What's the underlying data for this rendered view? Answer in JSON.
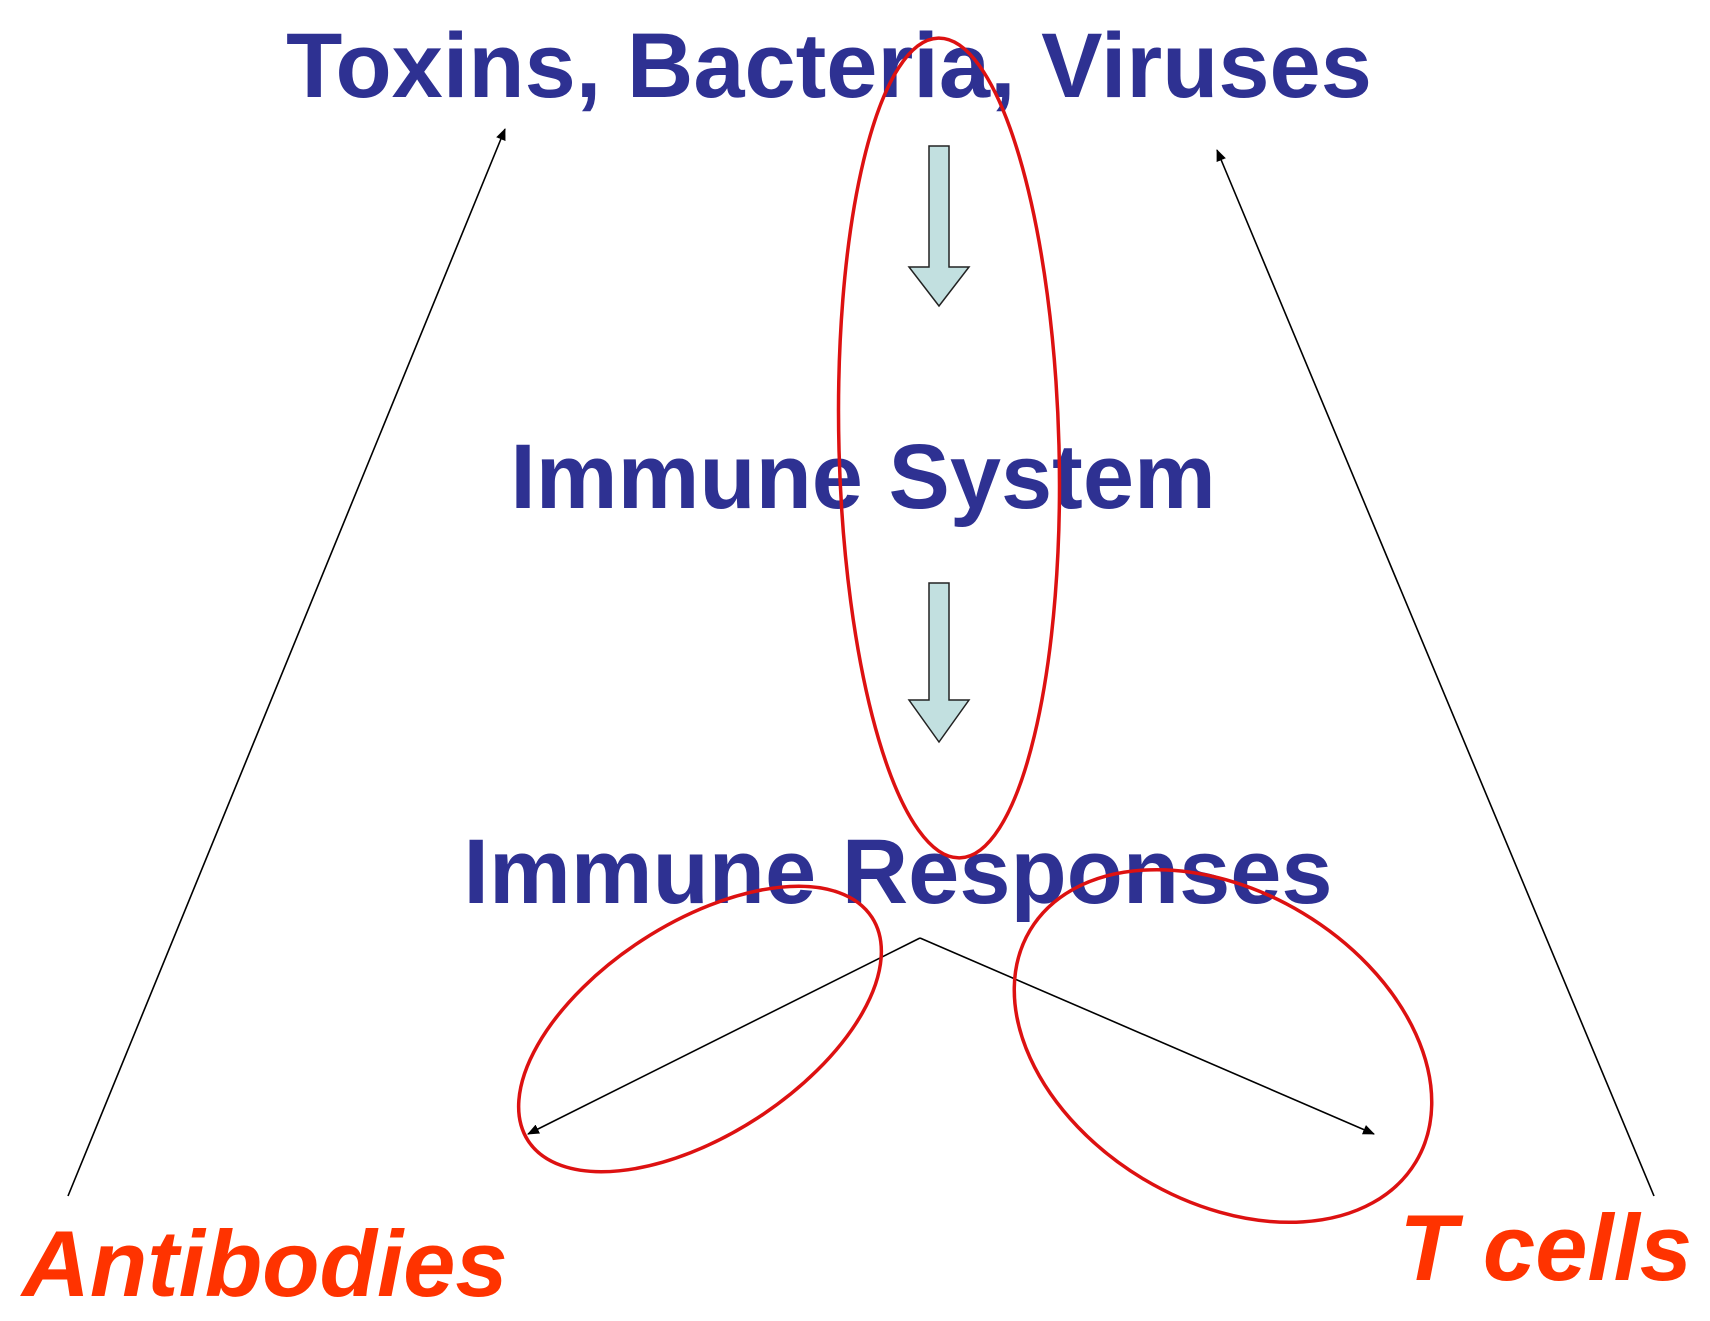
{
  "diagram": {
    "nodes": {
      "pathogens": "Toxins, Bacteria, Viruses",
      "immune_system": "Immune System",
      "immune_responses": "Immune Responses"
    },
    "outcomes": {
      "antibodies": "Antibodies",
      "t_cells": "T cells"
    }
  },
  "colors": {
    "node_text": "#2e3192",
    "outcome_text": "#ff3300",
    "highlight_ellipse": "#dd1111",
    "flow_arrow_fill": "#c2e0e0",
    "line": "#000000",
    "background": "#ffffff"
  }
}
